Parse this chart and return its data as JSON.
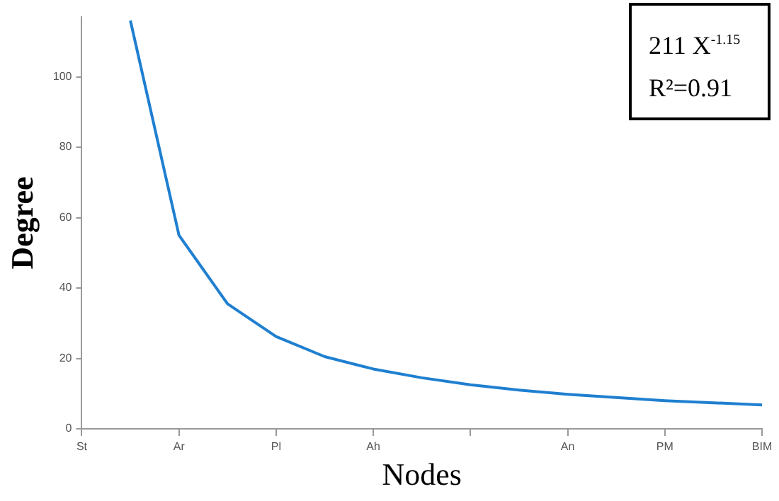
{
  "chart_data": {
    "type": "line",
    "xlabel": "Nodes",
    "ylabel": "Degree",
    "categories": [
      "St",
      null,
      "Ar",
      null,
      "Pl",
      null,
      "Ah",
      null,
      null,
      null,
      "An",
      null,
      "PM",
      null,
      "BIM"
    ],
    "series": [
      {
        "color": "#1f7fd0",
        "values": [
          null,
          116,
          55,
          35.5,
          26.2,
          20.5,
          17,
          14.5,
          12.5,
          11,
          9.8,
          8.9,
          8,
          7.4,
          6.8
        ]
      }
    ],
    "ylim": [
      0,
      117
    ],
    "yticks": [
      0,
      20,
      40,
      60,
      80,
      100
    ],
    "annotations": [
      "211 X$^{-1.15}$",
      "R²=0.91"
    ],
    "grid": false,
    "legend": false,
    "marker": "none",
    "line_style": "solid"
  }
}
